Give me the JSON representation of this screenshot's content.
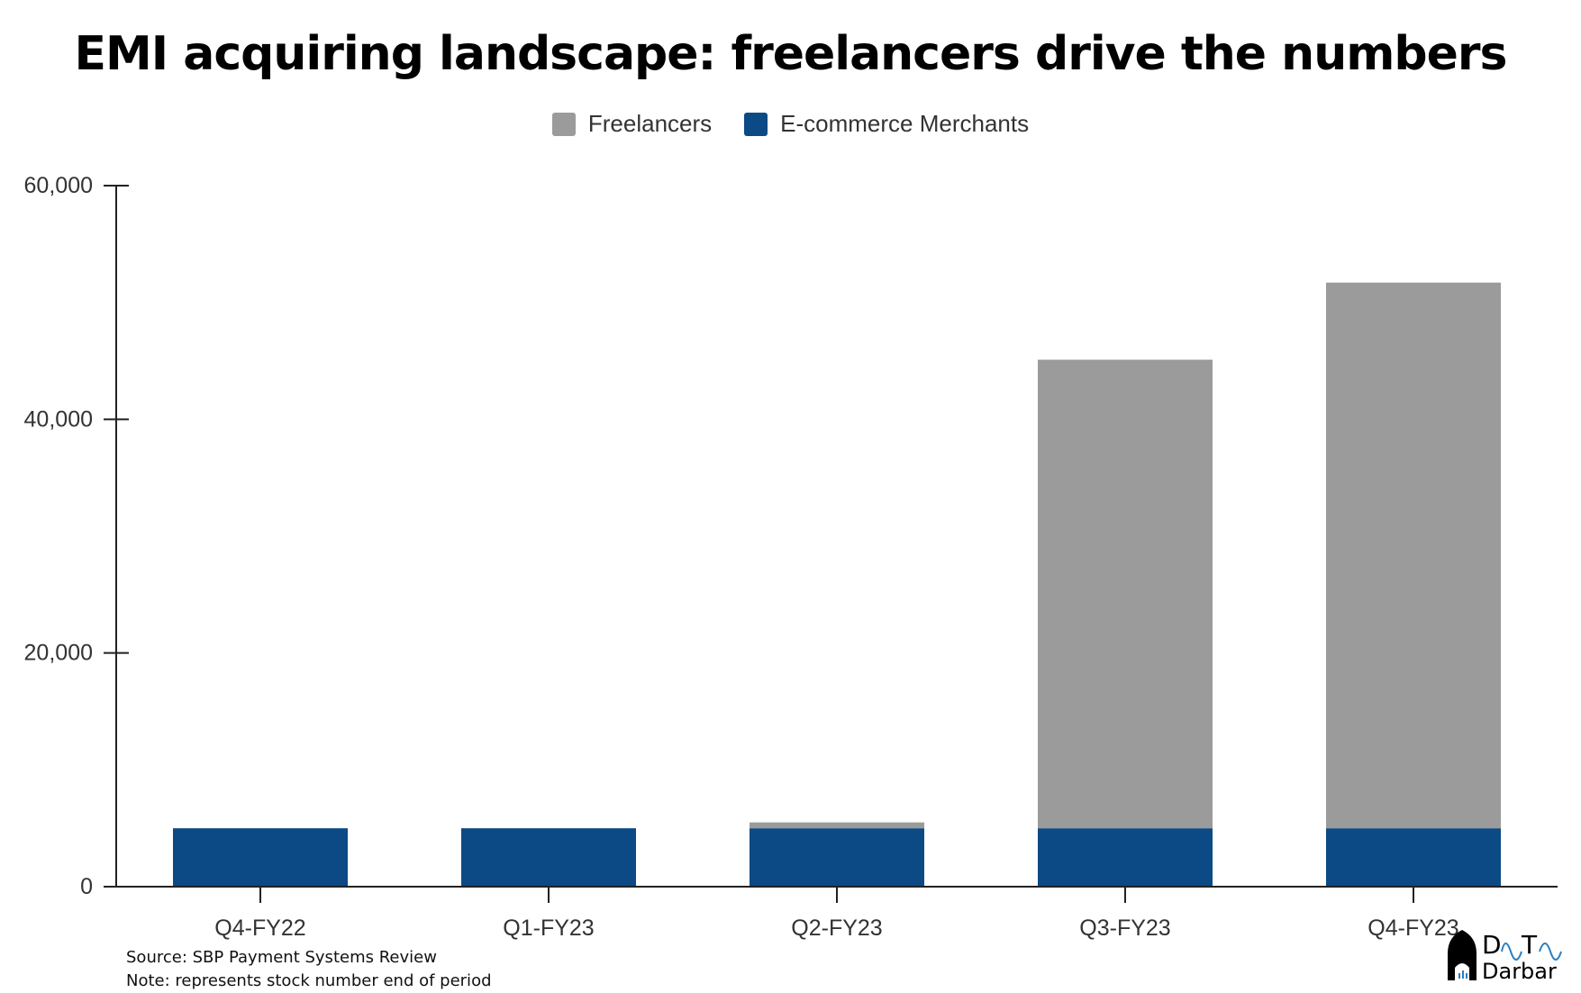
{
  "chart_data": {
    "type": "bar",
    "stacked": true,
    "title": "EMI acquiring landscape: freelancers drive the numbers",
    "categories": [
      "Q4-FY22",
      "Q1-FY23",
      "Q2-FY23",
      "Q3-FY23",
      "Q4-FY23"
    ],
    "series": [
      {
        "name": "E-commerce Merchants",
        "color": "#0b4a84",
        "values": [
          5000,
          5000,
          5000,
          5000,
          5000
        ]
      },
      {
        "name": "Freelancers",
        "color": "#9b9b9b",
        "values": [
          0,
          0,
          500,
          40100,
          46700
        ]
      }
    ],
    "legend_order": [
      "Freelancers",
      "E-commerce Merchants"
    ],
    "legend_position": "top",
    "ylim": [
      0,
      60000
    ],
    "yticks": [
      0,
      20000,
      40000,
      60000
    ],
    "ytick_labels": [
      "0",
      "20,000",
      "40,000",
      "60,000"
    ],
    "grid": false,
    "xlabel": "",
    "ylabel": ""
  },
  "notes": {
    "source": "Source: SBP Payment Systems Review",
    "note": "Note: represents stock number end of period"
  },
  "logo": {
    "text": "Data Darbar"
  }
}
